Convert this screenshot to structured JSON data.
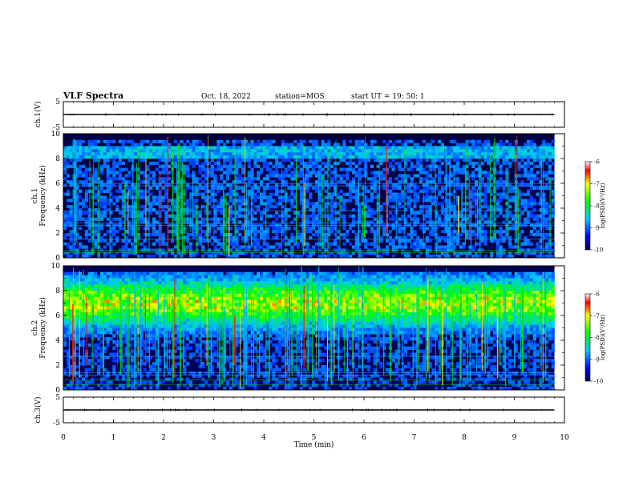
{
  "header": {
    "title": "VLF Spectra",
    "date": "Oct. 18, 2022",
    "station": "station=MOS",
    "start": "start  UT  =   19: 50: 1"
  },
  "chart_data": [
    {
      "type": "line",
      "name": "ch1-voltage",
      "ylabel": "ch.1(V)",
      "ylim": [
        -5,
        5
      ],
      "yticks": [
        "5",
        "-5"
      ],
      "xlim": [
        0,
        10
      ],
      "level_volts": 0,
      "trace_end_min": 9.8
    },
    {
      "type": "heatmap",
      "name": "ch1-spectrogram",
      "ylabel": "ch.1\nFrequency (kHz)",
      "ylim": [
        0,
        10
      ],
      "yticks": [
        "0",
        "2",
        "4",
        "6",
        "8",
        "10"
      ],
      "xlim": [
        0,
        10
      ],
      "data_end_min": 9.8,
      "colorbar": {
        "label": "log(PSD)(V²/Hz)",
        "range": [
          -10,
          -6
        ],
        "ticks": [
          "-6",
          "-7",
          "-8",
          "-9",
          "-10"
        ]
      }
    },
    {
      "type": "heatmap",
      "name": "ch2-spectrogram",
      "ylabel": "ch.2\nFrequency (kHz)",
      "ylim": [
        0,
        10
      ],
      "yticks": [
        "0",
        "2",
        "4",
        "6",
        "8",
        "10"
      ],
      "xlim": [
        0,
        10
      ],
      "data_end_min": 9.8,
      "colorbar": {
        "label": "log(PSD)(V²/Hz)",
        "range": [
          -10,
          -6
        ],
        "ticks": [
          "-6",
          "-7",
          "-8",
          "-9",
          "-10"
        ]
      }
    },
    {
      "type": "line",
      "name": "ch3-voltage",
      "ylabel": "ch.3(V)",
      "ylim": [
        -5,
        5
      ],
      "yticks": [
        "5",
        "-5"
      ],
      "xlim": [
        0,
        10
      ],
      "level_volts": 0,
      "trace_end_min": 9.8
    }
  ],
  "xaxis": {
    "label": "Time  (min)",
    "ticks": [
      "0",
      "1",
      "2",
      "3",
      "4",
      "5",
      "6",
      "7",
      "8",
      "9",
      "10"
    ]
  },
  "colors": {
    "background": "#000066",
    "low": "#0000cc",
    "mid": "#00ee00",
    "high": "#ff0000"
  }
}
